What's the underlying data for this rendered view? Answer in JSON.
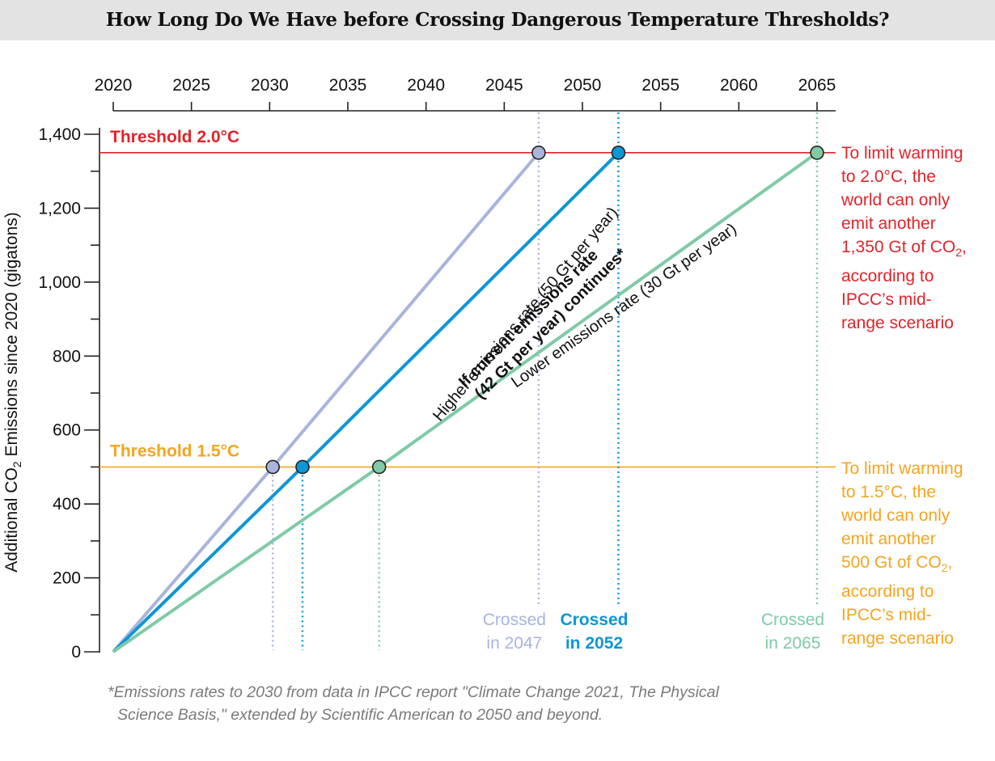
{
  "title": "How Long Do We Have before Crossing Dangerous Temperature Thresholds?",
  "chart_data": {
    "type": "line",
    "title": "How Long Do We Have before Crossing Dangerous Temperature Thresholds?",
    "ylabel_main": "Additional CO",
    "ylabel_sub": "2",
    "ylabel_tail": " Emissions since 2020 (gigatons)",
    "xlim": [
      2020,
      2065
    ],
    "ylim": [
      0,
      1400
    ],
    "x_axis_position": "top",
    "x_ticks": [
      2020,
      2025,
      2030,
      2035,
      2040,
      2045,
      2050,
      2055,
      2060,
      2065
    ],
    "x_tick_labels": [
      "2020",
      "2025",
      "2030",
      "2035",
      "2040",
      "2045",
      "2050",
      "2055",
      "2060",
      "2065"
    ],
    "y_ticks": [
      0,
      200,
      400,
      600,
      800,
      1000,
      1200,
      1400
    ],
    "y_tick_labels": [
      "0",
      "200",
      "400",
      "600",
      "800",
      "1,000",
      "1,200",
      "1,400"
    ],
    "grid": false,
    "thresholds": [
      {
        "label": "Threshold 2.0°C",
        "value": 1350,
        "color": "#e0242b"
      },
      {
        "label": "Threshold 1.5°C",
        "value": 500,
        "color": "#f4a51f"
      }
    ],
    "series": [
      {
        "name": "Higher emissions rate (50 Gt per year)",
        "rate_gt_per_year": 50,
        "x": [
          2020,
          2030.2,
          2047.2
        ],
        "y": [
          0,
          500,
          1350
        ],
        "color": "#a9b4dc",
        "crossing_15": 2030.2,
        "crossing_20": 2047.2,
        "bold": false
      },
      {
        "name": "If current emissions rate",
        "name_line2": "(42 Gt per year) continues*",
        "rate_gt_per_year": 42,
        "x": [
          2020,
          2032.1,
          2052.3
        ],
        "y": [
          0,
          500,
          1350
        ],
        "color": "#0d96d6",
        "crossing_15": 2032.1,
        "crossing_20": 2052.3,
        "bold": true
      },
      {
        "name": "Lower emissions rate (30 Gt per year)",
        "rate_gt_per_year": 30,
        "x": [
          2020,
          2037,
          2065
        ],
        "y": [
          0,
          500,
          1350
        ],
        "color": "#7fcaa7",
        "crossing_15": 2037,
        "crossing_20": 2065,
        "bold": false
      }
    ],
    "crossed_labels": [
      {
        "line1": "Crossed",
        "line2": "in 2047",
        "color": "#a9b4dc",
        "bold": false
      },
      {
        "line1": "Crossed",
        "line2": "in 2052",
        "color": "#0d96d6",
        "bold": true
      },
      {
        "line1": "Crossed",
        "line2": "in 2065",
        "color": "#7fcaa7",
        "bold": false
      }
    ]
  },
  "notes": {
    "limit_20": [
      "To limit warming",
      "to 2.0°C, the",
      "world can only",
      "emit another",
      "1,350 Gt of CO",
      "according to",
      "IPCC’s mid-",
      "range scenario"
    ],
    "limit_15": [
      "To limit warming",
      "to 1.5°C, the",
      "world can only",
      "emit another",
      "500 Gt of CO",
      "according to",
      "IPCC’s mid-",
      "range scenario"
    ],
    "co2_subscript": "2",
    "co2_trail": ","
  },
  "footnote": {
    "line1": "*Emissions rates to 2030 from data in IPCC report \"Climate Change 2021, The Physical",
    "line2": "Science Basis,\" extended by Scientific American to 2050 and beyond."
  }
}
